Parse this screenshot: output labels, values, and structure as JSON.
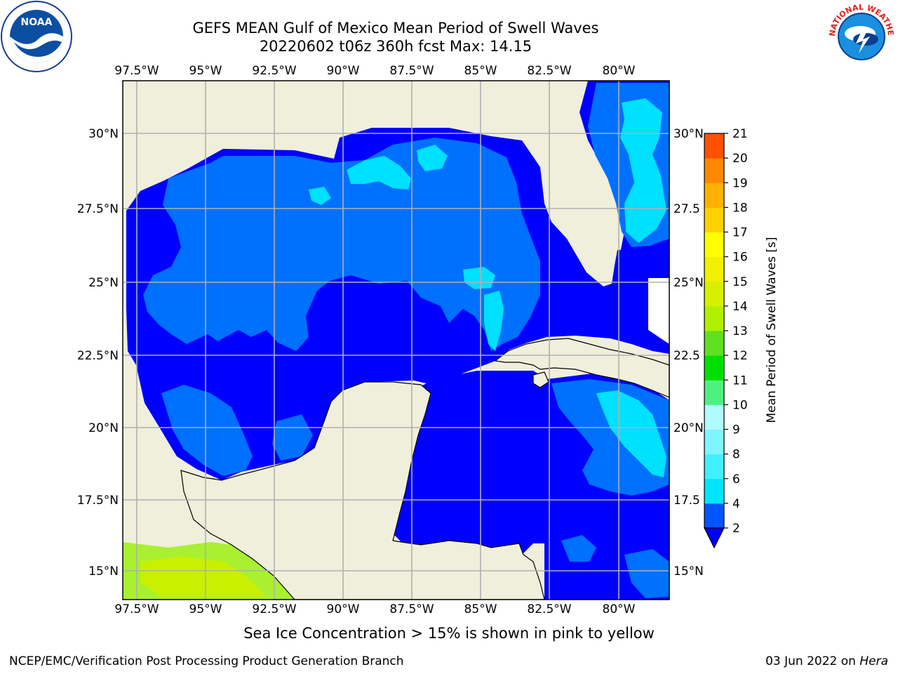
{
  "title": {
    "line1": "GEFS MEAN Gulf of Mexico Mean Period of Swell Waves",
    "line2": "20220602 t06z 360h fcst   Max: 14.15"
  },
  "axes": {
    "lon_labels": [
      "97.5°W",
      "95°W",
      "92.5°W",
      "90°W",
      "87.5°W",
      "85°W",
      "82.5°W",
      "80°W"
    ],
    "lat_labels_left": [
      "30°N",
      "27.5°N",
      "25°N",
      "22.5°N",
      "20°N",
      "17.5°N",
      "15°N"
    ],
    "lat_labels_right": [
      "30°N",
      "27.5",
      "25°N",
      "22.5",
      "20°N",
      "17.5",
      "15°N"
    ]
  },
  "colorbar": {
    "label": "Mean Period of Swell Waves [s]",
    "ticks": [
      "2",
      "4",
      "6",
      "8",
      "9",
      "10",
      "11",
      "12",
      "13",
      "14",
      "15",
      "16",
      "17",
      "18",
      "19",
      "20",
      "21"
    ],
    "colors": [
      "#0055ff",
      "#00e5ff",
      "#40f0ff",
      "#7ff5ff",
      "#b0fbff",
      "#50f080",
      "#00e000",
      "#60e020",
      "#b0f000",
      "#d8f000",
      "#f0f000",
      "#ffff00",
      "#ffd000",
      "#ffb000",
      "#ff8800",
      "#ff5000",
      "#ff2a00",
      "#ff0000"
    ],
    "under_color": "#0000ff"
  },
  "map_colors": {
    "land": "#efefdc",
    "deep": "#0000ff",
    "mid": "#0070ff",
    "light": "#00e0ff",
    "green": "#a8f030",
    "green2": "#c8f000"
  },
  "note": "Sea Ice Concentration > 15% is shown in pink to yellow",
  "footer": {
    "left": "NCEP/EMC/Verification Post Processing Product Generation Branch",
    "right_date": "03 Jun 2022 on ",
    "right_host": "Hera"
  },
  "logos": {
    "noaa_text": "NOAA",
    "nws_text": "NATIONAL WEATHER SERVICE"
  }
}
